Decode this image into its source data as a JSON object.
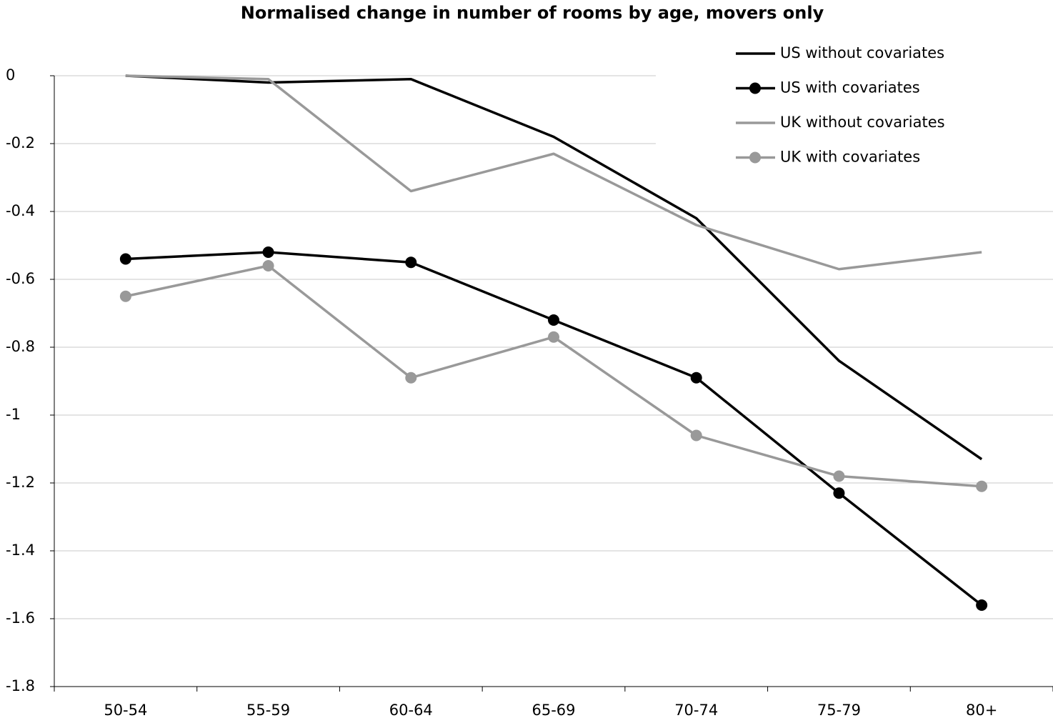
{
  "chart_data": {
    "type": "line",
    "title": "Normalised change in number of rooms by age, movers only",
    "categories": [
      "50-54",
      "55-59",
      "60-64",
      "65-69",
      "70-74",
      "75-79",
      "80+"
    ],
    "series": [
      {
        "name": "US without covariates",
        "color": "#000000",
        "marker": false,
        "values": [
          0,
          -0.02,
          -0.01,
          -0.18,
          -0.42,
          -0.84,
          -1.13
        ]
      },
      {
        "name": "US with covariates",
        "color": "#000000",
        "marker": true,
        "values": [
          -0.54,
          -0.52,
          -0.55,
          -0.72,
          -0.89,
          -1.23,
          -1.56
        ]
      },
      {
        "name": "UK without covariates",
        "color": "#999999",
        "marker": false,
        "values": [
          0,
          -0.01,
          -0.34,
          -0.23,
          -0.44,
          -0.57,
          -0.52
        ]
      },
      {
        "name": "UK with covariates",
        "color": "#999999",
        "marker": true,
        "values": [
          -0.65,
          -0.56,
          -0.89,
          -0.77,
          -1.06,
          -1.18,
          -1.21
        ]
      }
    ],
    "ylim": [
      -1.8,
      0
    ],
    "yticks": [
      0,
      -0.2,
      -0.4,
      -0.6,
      -0.8,
      -1,
      -1.2,
      -1.4,
      -1.6,
      -1.8
    ],
    "grid": true,
    "legend": "top-right"
  }
}
